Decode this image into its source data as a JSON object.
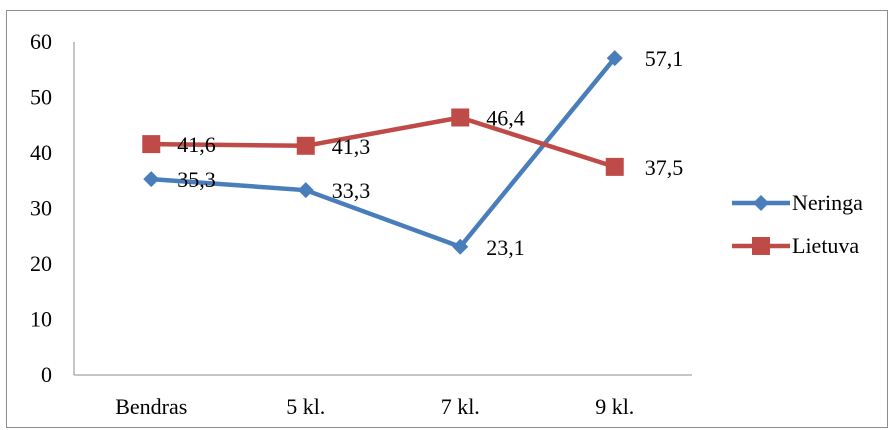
{
  "chart_data": {
    "type": "line",
    "categories": [
      "Bendras",
      "5 kl.",
      "7 kl.",
      "9 kl."
    ],
    "series": [
      {
        "name": "Neringa",
        "values": [
          35.3,
          33.3,
          23.1,
          57.1
        ],
        "labels": [
          "35,3",
          "33,3",
          "23,1",
          "57,1"
        ],
        "color": "#4a7ebb",
        "marker": "diamond"
      },
      {
        "name": "Lietuva",
        "values": [
          41.6,
          41.3,
          46.4,
          37.5
        ],
        "labels": [
          "41,6",
          "41,3",
          "46,4",
          "37,5"
        ],
        "color": "#be4b48",
        "marker": "square"
      }
    ],
    "yticks": [
      "0",
      "10",
      "20",
      "30",
      "40",
      "50",
      "60"
    ],
    "ylim": [
      0,
      60
    ],
    "grid": false,
    "legend": "right"
  }
}
